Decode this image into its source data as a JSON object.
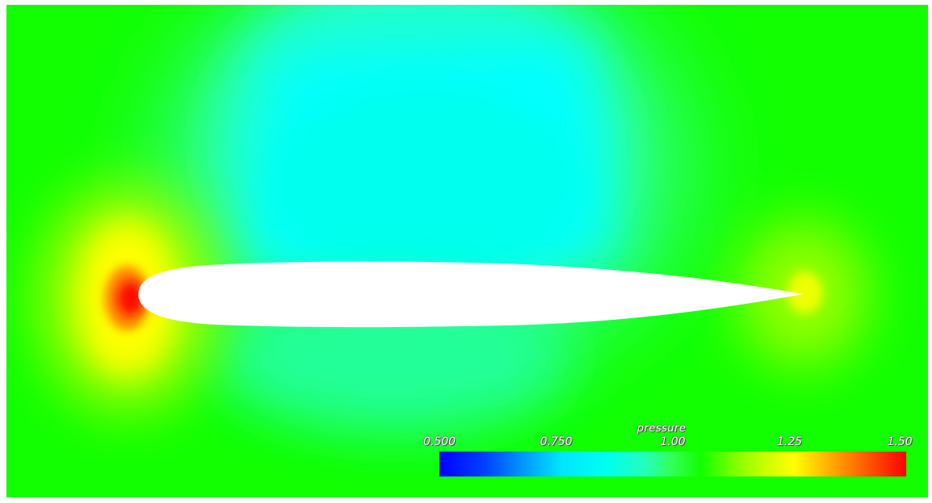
{
  "colorbar": {
    "title": "pressure",
    "ticks": [
      {
        "label": "0.500",
        "value": 0.5
      },
      {
        "label": "0.750",
        "value": 0.75
      },
      {
        "label": "1.00",
        "value": 1.0
      },
      {
        "label": "1.25",
        "value": 1.25
      },
      {
        "label": "1.50",
        "value": 1.5
      }
    ],
    "range": [
      0.5,
      1.5
    ],
    "colors": {
      "low": "#0000ff",
      "mid_low": "#00ffff",
      "mid": "#11ff00",
      "mid_high": "#ffff00",
      "high": "#ff0000"
    }
  },
  "field": {
    "variable": "pressure",
    "background_color": "#11ff00",
    "low_pressure_color": "#00ffff",
    "stagnation_color": "#ff0000",
    "body_color": "#ffffff"
  }
}
